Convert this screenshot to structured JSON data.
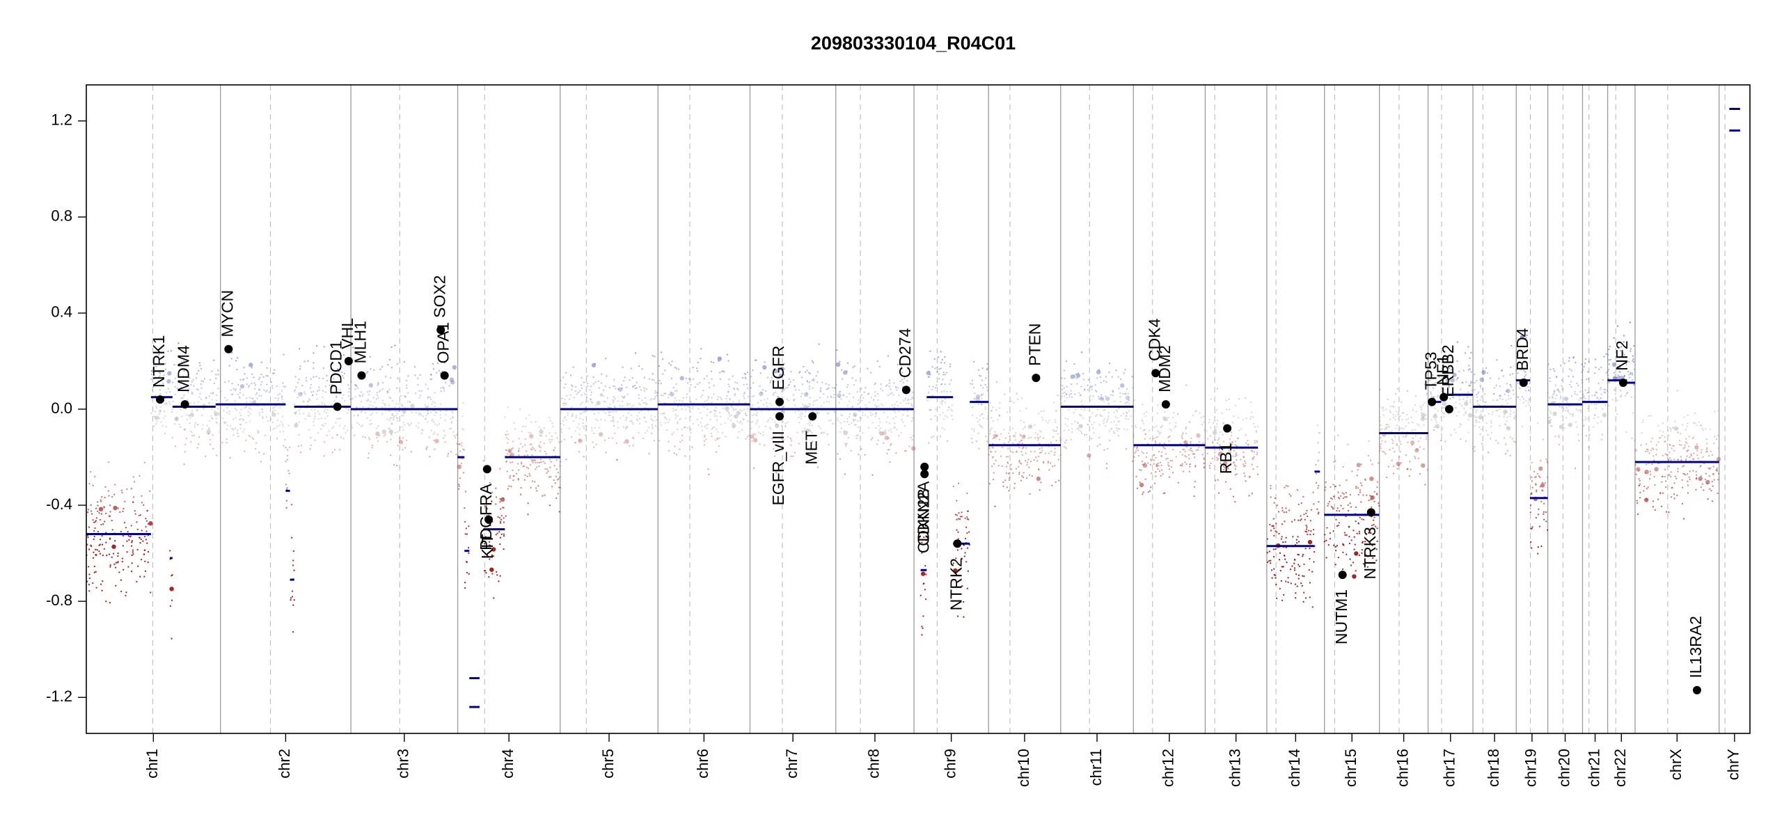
{
  "chart_data": {
    "type": "scatter",
    "subtype": "copy-number-profile",
    "title": "209803330104_R04C01",
    "xlabel": "",
    "ylabel": "",
    "ylim": [
      -1.35,
      1.35
    ],
    "grid": false,
    "y_ticks": [
      -1.2,
      -0.8,
      -0.4,
      0.0,
      0.4,
      0.8,
      1.2
    ],
    "y_tick_labels": [
      "-1.2",
      "-0.8",
      "-0.4",
      "0.0",
      "0.4",
      "0.8",
      "1.2"
    ],
    "colors": {
      "gain": "#7f84c4",
      "neutral": "#bfbfbf",
      "loss": "#b22222",
      "segment": "#00008b",
      "point": "#000000",
      "boundary": "#9a9a9a"
    },
    "chromosomes": [
      {
        "name": "chr1",
        "start": 0.0,
        "end": 248.96,
        "centromere": 123.4
      },
      {
        "name": "chr2",
        "start": 248.96,
        "end": 491.15,
        "centromere": 341.76
      },
      {
        "name": "chr3",
        "start": 491.15,
        "end": 689.45,
        "centromere": 581.75
      },
      {
        "name": "chr4",
        "start": 689.45,
        "end": 879.66,
        "centromere": 739.45
      },
      {
        "name": "chr5",
        "start": 879.66,
        "end": 1061.19,
        "centromere": 928.16
      },
      {
        "name": "chr6",
        "start": 1061.19,
        "end": 1232.0,
        "centromere": 1120.29
      },
      {
        "name": "chr7",
        "start": 1232.0,
        "end": 1391.35,
        "centromere": 1292.05
      },
      {
        "name": "chr8",
        "start": 1391.35,
        "end": 1536.49,
        "centromere": 1436.85
      },
      {
        "name": "chr9",
        "start": 1536.49,
        "end": 1674.88,
        "centromere": 1579.49
      },
      {
        "name": "chr10",
        "start": 1674.88,
        "end": 1808.68,
        "centromere": 1714.68
      },
      {
        "name": "chr11",
        "start": 1808.68,
        "end": 1943.77,
        "centromere": 1862.28
      },
      {
        "name": "chr12",
        "start": 1943.77,
        "end": 2077.05,
        "centromere": 1979.27
      },
      {
        "name": "chr13",
        "start": 2077.05,
        "end": 2191.42,
        "centromere": 2094.75
      },
      {
        "name": "chr14",
        "start": 2191.42,
        "end": 2298.46,
        "centromere": 2208.52
      },
      {
        "name": "chr15",
        "start": 2298.46,
        "end": 2400.45,
        "centromere": 2317.46
      },
      {
        "name": "chr16",
        "start": 2400.45,
        "end": 2490.79,
        "centromere": 2436.95
      },
      {
        "name": "chr17",
        "start": 2490.79,
        "end": 2574.05,
        "centromere": 2515.79
      },
      {
        "name": "chr18",
        "start": 2574.05,
        "end": 2654.42,
        "centromere": 2592.55
      },
      {
        "name": "chr19",
        "start": 2654.42,
        "end": 2713.03,
        "centromere": 2680.62
      },
      {
        "name": "chr20",
        "start": 2713.03,
        "end": 2777.47,
        "centromere": 2741.13
      },
      {
        "name": "chr21",
        "start": 2777.47,
        "end": 2824.18,
        "centromere": 2789.47
      },
      {
        "name": "chr22",
        "start": 2824.18,
        "end": 2875.0,
        "centromere": 2839.18
      },
      {
        "name": "chrX",
        "start": 2875.0,
        "end": 3031.04,
        "centromere": 2935.6
      },
      {
        "name": "chrY",
        "start": 3031.04,
        "end": 3088.27,
        "centromere": 3041.84
      }
    ],
    "segments": [
      {
        "x0": 0,
        "x1": 120,
        "y": -0.52
      },
      {
        "x0": 120,
        "x1": 160,
        "y": 0.05
      },
      {
        "x0": 155,
        "x1": 160,
        "y": -0.62
      },
      {
        "x0": 160,
        "x1": 240,
        "y": 0.01
      },
      {
        "x0": 240,
        "x1": 370,
        "y": 0.02
      },
      {
        "x0": 370,
        "x1": 378,
        "y": -0.34
      },
      {
        "x0": 378,
        "x1": 386,
        "y": -0.71
      },
      {
        "x0": 386,
        "x1": 491,
        "y": 0.01
      },
      {
        "x0": 491,
        "x1": 689,
        "y": 0.0
      },
      {
        "x0": 689,
        "x1": 702,
        "y": -0.2
      },
      {
        "x0": 702,
        "x1": 711,
        "y": -0.59
      },
      {
        "x0": 711,
        "x1": 730,
        "y": -1.12
      },
      {
        "x0": 711,
        "x1": 730,
        "y": -1.24
      },
      {
        "x0": 737,
        "x1": 777,
        "y": -0.5
      },
      {
        "x0": 777,
        "x1": 880,
        "y": -0.2
      },
      {
        "x0": 880,
        "x1": 1061,
        "y": 0.0
      },
      {
        "x0": 1061,
        "x1": 1232,
        "y": 0.02
      },
      {
        "x0": 1232,
        "x1": 1391,
        "y": 0.0
      },
      {
        "x0": 1391,
        "x1": 1536,
        "y": 0.0
      },
      {
        "x0": 1549,
        "x1": 1560,
        "y": -0.67
      },
      {
        "x0": 1560,
        "x1": 1609,
        "y": 0.05
      },
      {
        "x0": 1609,
        "x1": 1640,
        "y": -0.56
      },
      {
        "x0": 1640,
        "x1": 1675,
        "y": 0.03
      },
      {
        "x0": 1675,
        "x1": 1809,
        "y": -0.15
      },
      {
        "x0": 1809,
        "x1": 1944,
        "y": 0.01
      },
      {
        "x0": 1944,
        "x1": 2077,
        "y": -0.15
      },
      {
        "x0": 2077,
        "x1": 2175,
        "y": -0.16
      },
      {
        "x0": 2191,
        "x1": 2280,
        "y": -0.57
      },
      {
        "x0": 2280,
        "x1": 2290,
        "y": -0.26
      },
      {
        "x0": 2298,
        "x1": 2400,
        "y": -0.44
      },
      {
        "x0": 2400,
        "x1": 2491,
        "y": -0.1
      },
      {
        "x0": 2491,
        "x1": 2515,
        "y": 0.03
      },
      {
        "x0": 2515,
        "x1": 2574,
        "y": 0.06
      },
      {
        "x0": 2574,
        "x1": 2654,
        "y": 0.01
      },
      {
        "x0": 2654,
        "x1": 2680,
        "y": 0.12
      },
      {
        "x0": 2680,
        "x1": 2713,
        "y": -0.37
      },
      {
        "x0": 2713,
        "x1": 2777,
        "y": 0.02
      },
      {
        "x0": 2777,
        "x1": 2824,
        "y": 0.03
      },
      {
        "x0": 2824,
        "x1": 2860,
        "y": 0.12
      },
      {
        "x0": 2860,
        "x1": 2875,
        "y": 0.11
      },
      {
        "x0": 2875,
        "x1": 3031,
        "y": -0.22
      },
      {
        "x0": 3050,
        "x1": 3070,
        "y": 1.25
      },
      {
        "x0": 3050,
        "x1": 3070,
        "y": 1.16
      }
    ],
    "genes": [
      {
        "name": "NTRK1",
        "x": 137,
        "y": 0.04,
        "offset": 0.05
      },
      {
        "name": "MDM4",
        "x": 183,
        "y": 0.02,
        "offset": 0.05
      },
      {
        "name": "MYCN",
        "x": 264,
        "y": 0.25,
        "offset": 0.05
      },
      {
        "name": "PDGFRA",
        "x": 744,
        "y": -0.25,
        "offset": -0.06
      },
      {
        "name": "PDCD1",
        "x": 466,
        "y": 0.01,
        "offset": 0.05
      },
      {
        "name": "VHL",
        "x": 487,
        "y": 0.2,
        "offset": 0.05
      },
      {
        "name": "MLH1",
        "x": 511,
        "y": 0.14,
        "offset": 0.05
      },
      {
        "name": "SOX2",
        "x": 658,
        "y": 0.33,
        "offset": 0.05
      },
      {
        "name": "OPA1",
        "x": 665,
        "y": 0.14,
        "offset": 0.05
      },
      {
        "name": "KIT",
        "x": 747,
        "y": -0.46,
        "offset": -0.06
      },
      {
        "name": "EGFR",
        "x": 1287,
        "y": 0.03,
        "offset": 0.05
      },
      {
        "name": "EGFR_vIII",
        "x": 1287,
        "y": -0.03,
        "offset": -0.06
      },
      {
        "name": "MET",
        "x": 1348,
        "y": -0.03,
        "offset": -0.06
      },
      {
        "name": "CD274",
        "x": 1522,
        "y": 0.08,
        "offset": 0.05
      },
      {
        "name": "CDKN2A",
        "x": 1556,
        "y": -0.24,
        "offset": -0.06
      },
      {
        "name": "CDKN2B",
        "x": 1556,
        "y": -0.27,
        "offset": -0.06
      },
      {
        "name": "NTRK2",
        "x": 1617,
        "y": -0.56,
        "offset": -0.06
      },
      {
        "name": "PTEN",
        "x": 1763,
        "y": 0.13,
        "offset": 0.05
      },
      {
        "name": "CDK4",
        "x": 1985,
        "y": 0.15,
        "offset": 0.05
      },
      {
        "name": "MDM2",
        "x": 2004,
        "y": 0.02,
        "offset": 0.05
      },
      {
        "name": "RB1",
        "x": 2118,
        "y": -0.08,
        "offset": -0.06
      },
      {
        "name": "NUTM1",
        "x": 2332,
        "y": -0.69,
        "offset": -0.06
      },
      {
        "name": "NTRK3",
        "x": 2385,
        "y": -0.43,
        "offset": -0.06
      },
      {
        "name": "TP53",
        "x": 2498,
        "y": 0.03,
        "offset": 0.05
      },
      {
        "name": "NF1",
        "x": 2520,
        "y": 0.05,
        "offset": 0.05
      },
      {
        "name": "ERBB2",
        "x": 2530,
        "y": 0.0,
        "offset": 0.05
      },
      {
        "name": "BRD4",
        "x": 2668,
        "y": 0.11,
        "offset": 0.05
      },
      {
        "name": "NF2",
        "x": 2853,
        "y": 0.11,
        "offset": 0.05
      },
      {
        "name": "IL13RA2",
        "x": 2990,
        "y": -1.17,
        "offset": 0.05
      }
    ]
  }
}
